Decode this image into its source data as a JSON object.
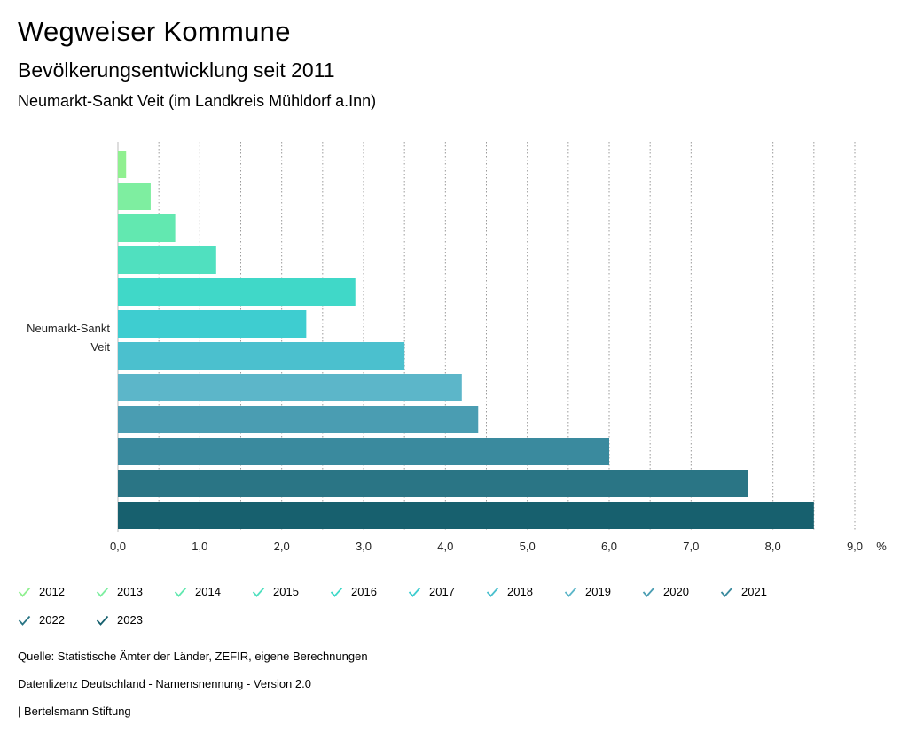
{
  "header": {
    "title": "Wegweiser Kommune",
    "subtitle": "Bevölkerungsentwicklung seit 2011",
    "region": "Neumarkt-Sankt Veit (im Landkreis Mühldorf a.Inn)"
  },
  "chart_data": {
    "type": "bar",
    "orientation": "horizontal",
    "category": "Neumarkt-Sankt Veit",
    "category_lines": [
      "Neumarkt-Sankt",
      "Veit"
    ],
    "xlabel": "%",
    "xlim": [
      0,
      9
    ],
    "x_ticks": [
      "0,0",
      "1,0",
      "2,0",
      "3,0",
      "4,0",
      "5,0",
      "6,0",
      "7,0",
      "8,0",
      "9,0"
    ],
    "grid": true,
    "legend_position": "bottom",
    "series": [
      {
        "name": "2012",
        "value": 0.1,
        "color": "#90f090"
      },
      {
        "name": "2013",
        "value": 0.4,
        "color": "#7eeea0"
      },
      {
        "name": "2014",
        "value": 0.7,
        "color": "#62e8b0"
      },
      {
        "name": "2015",
        "value": 1.2,
        "color": "#50e0bf"
      },
      {
        "name": "2016",
        "value": 2.9,
        "color": "#40d8c8"
      },
      {
        "name": "2017",
        "value": 2.3,
        "color": "#3ecdd0"
      },
      {
        "name": "2018",
        "value": 3.5,
        "color": "#4bc0ce"
      },
      {
        "name": "2019",
        "value": 4.2,
        "color": "#5cb6c9"
      },
      {
        "name": "2020",
        "value": 4.4,
        "color": "#4a9db2"
      },
      {
        "name": "2021",
        "value": 6.0,
        "color": "#3a8a9e"
      },
      {
        "name": "2022",
        "value": 7.7,
        "color": "#2a7585"
      },
      {
        "name": "2023",
        "value": 8.5,
        "color": "#17606e"
      }
    ]
  },
  "footer": {
    "source": "Quelle: Statistische Ämter der Länder, ZEFIR, eigene Berechnungen",
    "license": "Datenlizenz Deutschland - Namensnennung - Version 2.0",
    "publisher": "| Bertelsmann Stiftung"
  }
}
